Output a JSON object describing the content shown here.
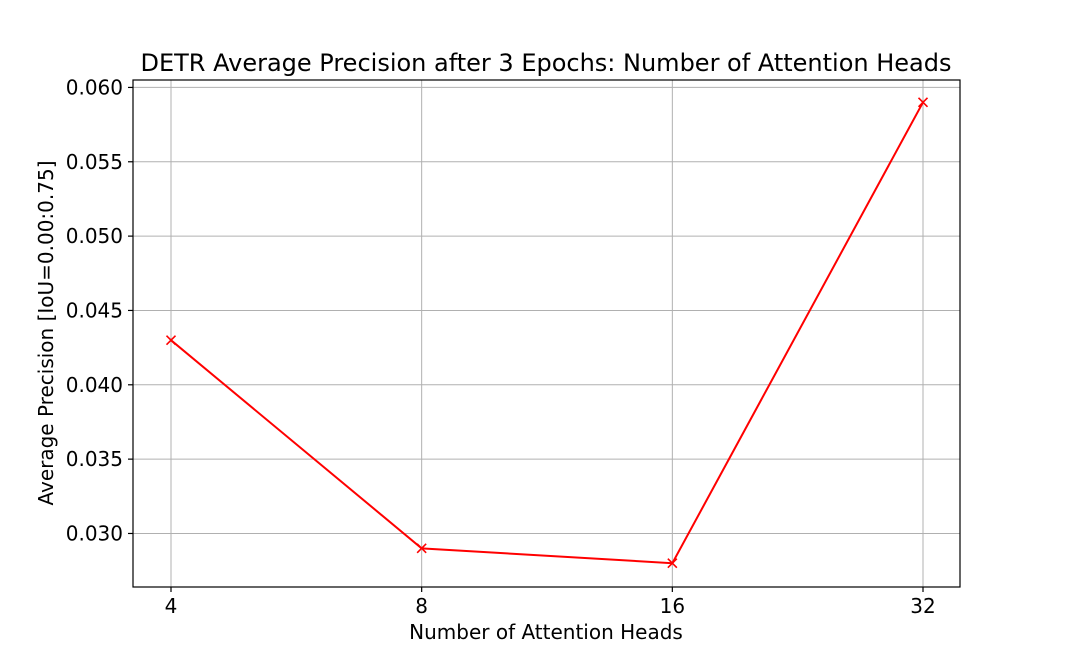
{
  "chart_data": {
    "type": "line",
    "title": "DETR Average Precision after 3 Epochs: Number of Attention Heads",
    "xlabel": "Number of Attention Heads",
    "ylabel": "Average Precision [IoU=0.00:0.75]",
    "categories": [
      "4",
      "8",
      "16",
      "32"
    ],
    "series": [
      {
        "values": [
          0.043,
          0.029,
          0.028,
          0.059
        ],
        "color": "#ff0000",
        "marker": "x"
      }
    ],
    "yticks": [
      "0.030",
      "0.035",
      "0.040",
      "0.045",
      "0.050",
      "0.055",
      "0.060"
    ],
    "ylim": [
      0.0264,
      0.0605
    ],
    "grid": true,
    "legend": "none"
  }
}
